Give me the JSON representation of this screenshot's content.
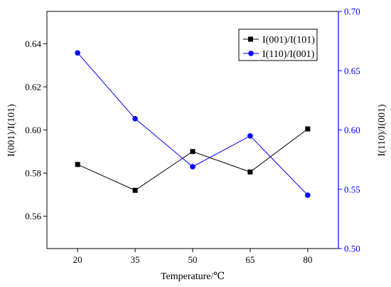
{
  "chart_data": {
    "type": "line",
    "title": "",
    "xlabel": "Temperature/℃",
    "categories": [
      "20",
      "35",
      "50",
      "65",
      "80"
    ],
    "x": [
      20,
      35,
      50,
      65,
      80
    ],
    "xlim": [
      12,
      88
    ],
    "y_left": {
      "label": "I(001)/I(101)",
      "lim": [
        0.545,
        0.655
      ],
      "ticks": [
        0.56,
        0.58,
        0.6,
        0.62,
        0.64
      ],
      "tick_labels": [
        "0.56",
        "0.58",
        "0.60",
        "0.62",
        "0.64"
      ],
      "color": "#000000"
    },
    "y_right": {
      "label": "I(110)/I(001)",
      "lim": [
        0.5,
        0.7
      ],
      "ticks": [
        0.5,
        0.55,
        0.6,
        0.65,
        0.7
      ],
      "tick_labels": [
        "0.50",
        "0.55",
        "0.60",
        "0.65",
        "0.70"
      ],
      "color": "#0000ff"
    },
    "series": [
      {
        "name": "I(001)/I(101)",
        "axis": "left",
        "marker": "square",
        "color": "#000000",
        "values": [
          0.584,
          0.572,
          0.59,
          0.5805,
          0.6005
        ]
      },
      {
        "name": "I(110)/I(001)",
        "axis": "right",
        "marker": "circle",
        "color": "#0000ff",
        "values": [
          0.665,
          0.6095,
          0.569,
          0.595,
          0.545
        ]
      }
    ],
    "legend_position": "top-right",
    "grid": false
  }
}
